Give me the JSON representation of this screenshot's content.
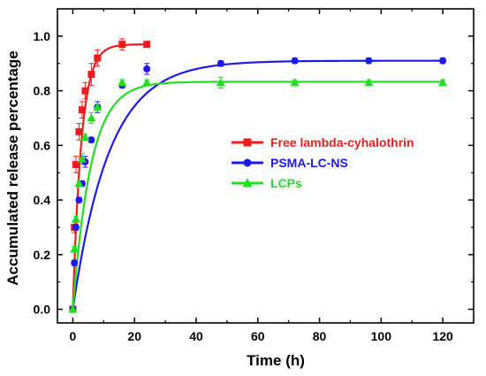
{
  "chart_data": {
    "type": "line",
    "title": "",
    "xlabel": "Time (h)",
    "ylabel": "Accumulated release percentage",
    "xlim": [
      -5,
      130
    ],
    "ylim": [
      -0.05,
      1.1
    ],
    "xticks": [
      0,
      20,
      40,
      60,
      80,
      100,
      120
    ],
    "xtick_labels": [
      "0",
      "20",
      "40",
      "60",
      "80",
      "100",
      "120"
    ],
    "yticks": [
      0.0,
      0.2,
      0.4,
      0.6,
      0.8,
      1.0
    ],
    "ytick_labels": [
      "0.0",
      "0.2",
      "0.4",
      "0.6",
      "0.8",
      "1.0"
    ],
    "grid": false,
    "legend_position": "right-center",
    "series": [
      {
        "name": "Free lambda-cyhalothrin",
        "color": "#ee1c1c",
        "marker": "square",
        "x": [
          0,
          0.5,
          1,
          2,
          3,
          4,
          6,
          8,
          16,
          24
        ],
        "y": [
          0.0,
          0.3,
          0.53,
          0.65,
          0.73,
          0.8,
          0.86,
          0.92,
          0.97,
          0.97
        ],
        "err": [
          0.0,
          0.02,
          0.03,
          0.03,
          0.03,
          0.03,
          0.04,
          0.03,
          0.02,
          0.01
        ],
        "curve_rate": 0.36,
        "curve_max": 0.97
      },
      {
        "name": "PSMA-LC-NS",
        "color": "#1a1aee",
        "marker": "circle",
        "x": [
          0,
          0.5,
          1,
          2,
          3,
          4,
          6,
          8,
          16,
          24,
          48,
          72,
          96,
          120
        ],
        "y": [
          0.0,
          0.17,
          0.3,
          0.4,
          0.46,
          0.54,
          0.62,
          0.74,
          0.82,
          0.88,
          0.9,
          0.91,
          0.91,
          0.91
        ],
        "err": [
          0.0,
          0.01,
          0.01,
          0.01,
          0.01,
          0.02,
          0.01,
          0.02,
          0.01,
          0.02,
          0.01,
          0.01,
          0.01,
          0.01
        ],
        "curve_rate": 0.085,
        "curve_max": 0.91
      },
      {
        "name": "LCPs",
        "color": "#22dd22",
        "marker": "triangle",
        "x": [
          0,
          0.5,
          1,
          2,
          3,
          4,
          6,
          8,
          16,
          24,
          48,
          72,
          96,
          120
        ],
        "y": [
          0.0,
          0.22,
          0.33,
          0.46,
          0.55,
          0.63,
          0.7,
          0.74,
          0.83,
          0.83,
          0.83,
          0.83,
          0.83,
          0.83
        ],
        "err": [
          0.0,
          0.01,
          0.01,
          0.01,
          0.02,
          0.01,
          0.02,
          0.01,
          0.01,
          0.01,
          0.02,
          0.01,
          0.01,
          0.01
        ],
        "curve_rate": 0.17,
        "curve_max": 0.833
      }
    ]
  }
}
